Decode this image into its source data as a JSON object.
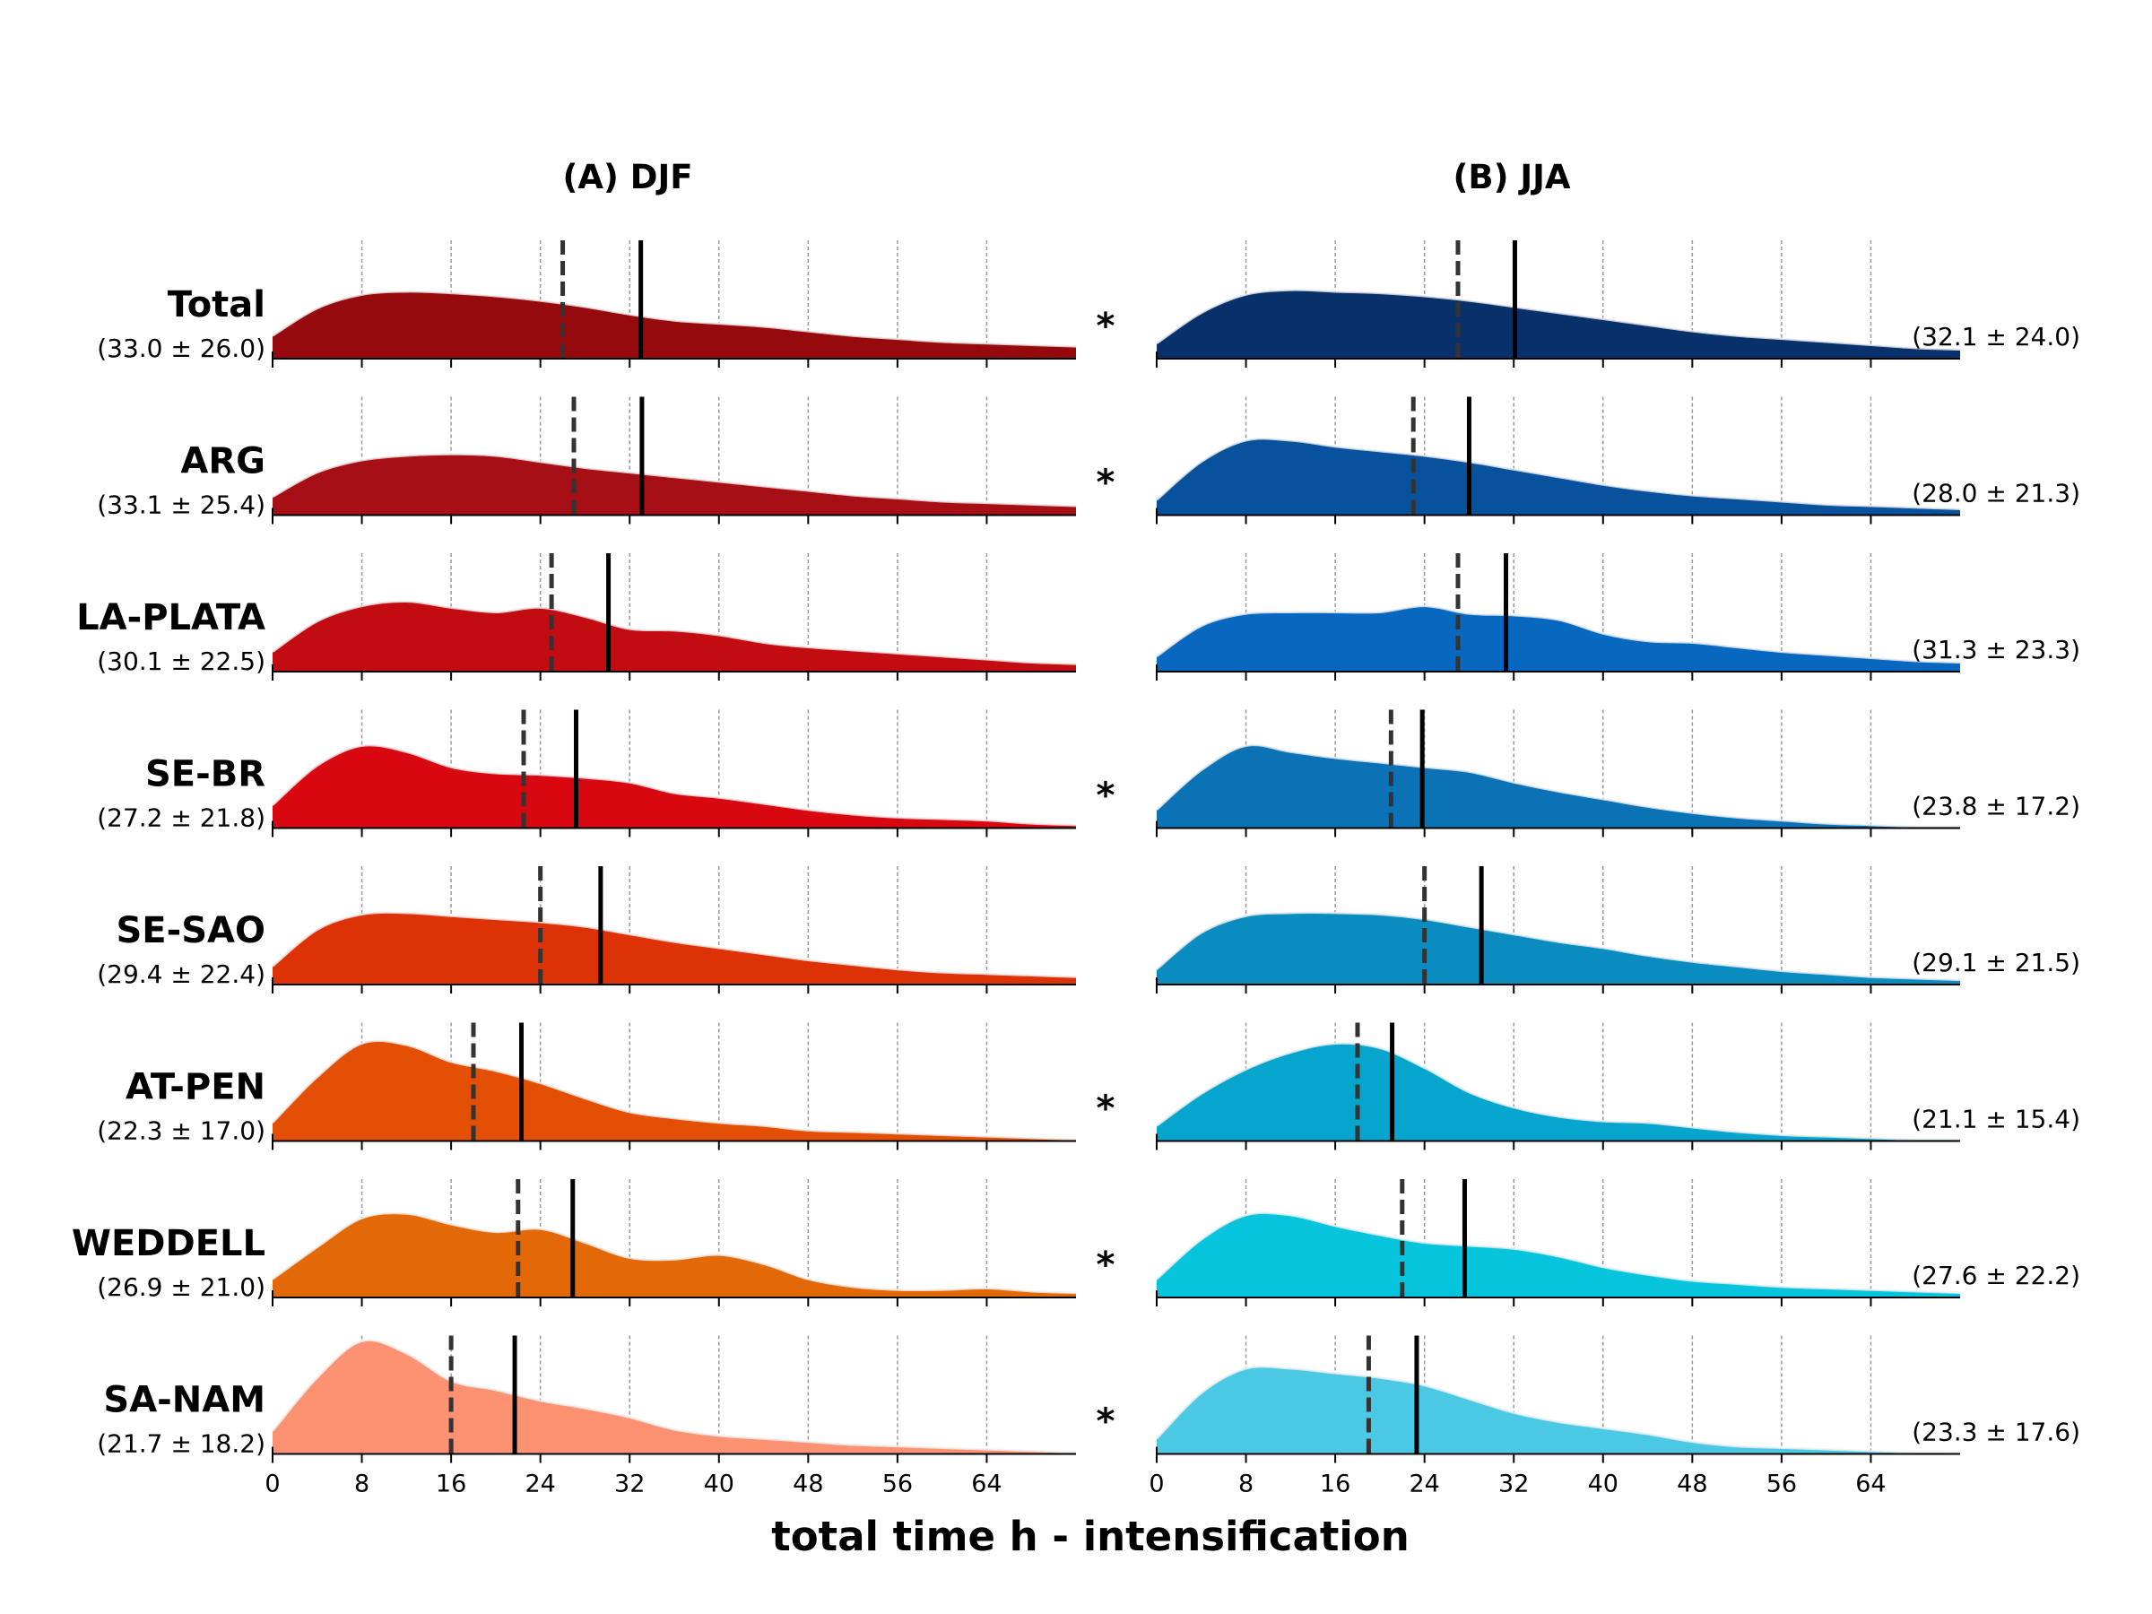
{
  "chart_data": {
    "type": "area",
    "xlabel": "total time h - intensification",
    "xlim": [
      0,
      72
    ],
    "xticks": [
      0,
      8,
      16,
      24,
      32,
      40,
      48,
      56,
      64
    ],
    "grid": "vertical dashed",
    "line_styles": {
      "dashed": "median",
      "solid": "mean"
    },
    "panels": [
      {
        "title": "(A) DJF",
        "colors": [
          "#960a0e",
          "#a50f15",
          "#c30b12",
          "#d7080f",
          "#dc3206",
          "#e24f05",
          "#e36908",
          "#fc9272"
        ],
        "series": [
          {
            "name": "Total",
            "stats": "(33.0 ± 26.0)",
            "mean": 33.0,
            "std": 26.0,
            "median": 26,
            "significant": true,
            "x": [
              0,
              4,
              8,
              12,
              16,
              20,
              24,
              28,
              32,
              36,
              40,
              44,
              48,
              52,
              56,
              60,
              64,
              68,
              72
            ],
            "density": [
              0.15,
              0.33,
              0.42,
              0.44,
              0.43,
              0.41,
              0.38,
              0.34,
              0.29,
              0.25,
              0.23,
              0.21,
              0.18,
              0.15,
              0.13,
              0.11,
              0.1,
              0.09,
              0.08
            ]
          },
          {
            "name": "ARG",
            "stats": "(33.1 ± 25.4)",
            "mean": 33.1,
            "std": 25.4,
            "median": 27,
            "significant": true,
            "x": [
              0,
              4,
              8,
              12,
              16,
              20,
              24,
              28,
              32,
              36,
              40,
              44,
              48,
              52,
              56,
              60,
              64,
              68,
              72
            ],
            "density": [
              0.12,
              0.28,
              0.36,
              0.39,
              0.4,
              0.39,
              0.35,
              0.31,
              0.28,
              0.25,
              0.22,
              0.19,
              0.16,
              0.13,
              0.11,
              0.09,
              0.08,
              0.07,
              0.06
            ]
          },
          {
            "name": "LA-PLATA",
            "stats": "(30.1 ± 22.5)",
            "mean": 30.1,
            "std": 22.5,
            "median": 25,
            "significant": false,
            "x": [
              0,
              4,
              8,
              12,
              16,
              20,
              24,
              28,
              32,
              36,
              40,
              44,
              48,
              52,
              56,
              60,
              64,
              68,
              72
            ],
            "density": [
              0.13,
              0.33,
              0.43,
              0.46,
              0.42,
              0.39,
              0.42,
              0.36,
              0.28,
              0.27,
              0.24,
              0.19,
              0.16,
              0.14,
              0.12,
              0.1,
              0.08,
              0.06,
              0.05
            ]
          },
          {
            "name": "SE-BR",
            "stats": "(27.2 ± 21.8)",
            "mean": 27.2,
            "std": 21.8,
            "median": 22.5,
            "significant": true,
            "x": [
              0,
              4,
              8,
              12,
              16,
              20,
              24,
              28,
              32,
              36,
              40,
              44,
              48,
              52,
              56,
              60,
              64,
              68,
              72
            ],
            "density": [
              0.15,
              0.41,
              0.54,
              0.5,
              0.4,
              0.36,
              0.35,
              0.33,
              0.3,
              0.23,
              0.2,
              0.16,
              0.12,
              0.09,
              0.07,
              0.06,
              0.05,
              0.03,
              0.02
            ]
          },
          {
            "name": "SE-SAO",
            "stats": "(29.4 ± 22.4)",
            "mean": 29.4,
            "std": 22.4,
            "median": 24,
            "significant": false,
            "x": [
              0,
              4,
              8,
              12,
              16,
              20,
              24,
              28,
              32,
              36,
              40,
              44,
              48,
              52,
              56,
              60,
              64,
              68,
              72
            ],
            "density": [
              0.12,
              0.36,
              0.46,
              0.47,
              0.45,
              0.43,
              0.41,
              0.38,
              0.33,
              0.28,
              0.24,
              0.2,
              0.16,
              0.13,
              0.1,
              0.08,
              0.07,
              0.06,
              0.05
            ]
          },
          {
            "name": "AT-PEN",
            "stats": "(22.3 ± 17.0)",
            "mean": 22.3,
            "std": 17.0,
            "median": 18,
            "significant": true,
            "x": [
              0,
              4,
              8,
              12,
              16,
              20,
              24,
              28,
              32,
              36,
              40,
              44,
              48,
              52,
              56,
              60,
              64,
              68,
              72
            ],
            "density": [
              0.12,
              0.42,
              0.64,
              0.63,
              0.52,
              0.46,
              0.38,
              0.28,
              0.19,
              0.15,
              0.12,
              0.1,
              0.07,
              0.06,
              0.05,
              0.04,
              0.03,
              0.02,
              0.01
            ]
          },
          {
            "name": "WEDDELL",
            "stats": "(26.9 ± 21.0)",
            "mean": 26.9,
            "std": 21.0,
            "median": 22,
            "significant": true,
            "x": [
              0,
              4,
              8,
              12,
              16,
              20,
              24,
              28,
              32,
              36,
              40,
              44,
              48,
              52,
              56,
              60,
              64,
              68,
              72
            ],
            "density": [
              0.12,
              0.33,
              0.52,
              0.55,
              0.48,
              0.43,
              0.45,
              0.36,
              0.26,
              0.25,
              0.28,
              0.22,
              0.12,
              0.07,
              0.05,
              0.05,
              0.06,
              0.04,
              0.03
            ]
          },
          {
            "name": "SA-NAM",
            "stats": "(21.7 ± 18.2)",
            "mean": 21.7,
            "std": 18.2,
            "median": 16,
            "significant": true,
            "x": [
              0,
              4,
              8,
              12,
              16,
              20,
              24,
              28,
              32,
              36,
              40,
              44,
              48,
              52,
              56,
              60,
              64,
              68,
              72
            ],
            "density": [
              0.15,
              0.5,
              0.74,
              0.66,
              0.48,
              0.42,
              0.35,
              0.3,
              0.24,
              0.16,
              0.12,
              0.1,
              0.08,
              0.06,
              0.05,
              0.04,
              0.03,
              0.02,
              0.01
            ]
          }
        ]
      },
      {
        "title": "(B) JJA",
        "colors": [
          "#08306b",
          "#08519c",
          "#0868c0",
          "#0a72b5",
          "#0a8cc0",
          "#06a5ce",
          "#06c4dc",
          "#4bc9e4"
        ],
        "series": [
          {
            "name": "Total",
            "stats": "(32.1 ± 24.0)",
            "mean": 32.1,
            "std": 24.0,
            "median": 27,
            "x": [
              0,
              4,
              8,
              12,
              16,
              20,
              24,
              28,
              32,
              36,
              40,
              44,
              48,
              52,
              56,
              60,
              64,
              68,
              72
            ],
            "density": [
              0.1,
              0.3,
              0.42,
              0.45,
              0.44,
              0.43,
              0.41,
              0.38,
              0.34,
              0.3,
              0.26,
              0.22,
              0.18,
              0.15,
              0.13,
              0.11,
              0.09,
              0.07,
              0.06
            ]
          },
          {
            "name": "ARG",
            "stats": "(28.0 ± 21.3)",
            "mean": 28.0,
            "std": 21.3,
            "median": 23,
            "x": [
              0,
              4,
              8,
              12,
              16,
              20,
              24,
              28,
              32,
              36,
              40,
              44,
              48,
              52,
              56,
              60,
              64,
              68,
              72
            ],
            "density": [
              0.1,
              0.35,
              0.49,
              0.49,
              0.45,
              0.42,
              0.39,
              0.35,
              0.3,
              0.25,
              0.2,
              0.16,
              0.13,
              0.11,
              0.09,
              0.07,
              0.06,
              0.05,
              0.04
            ]
          },
          {
            "name": "LA-PLATA",
            "stats": "(31.3 ± 23.3)",
            "mean": 31.3,
            "std": 23.3,
            "median": 27,
            "x": [
              0,
              4,
              8,
              12,
              16,
              20,
              24,
              28,
              32,
              36,
              40,
              44,
              48,
              52,
              56,
              60,
              64,
              68,
              72
            ],
            "density": [
              0.1,
              0.3,
              0.38,
              0.39,
              0.39,
              0.39,
              0.43,
              0.38,
              0.37,
              0.34,
              0.25,
              0.2,
              0.19,
              0.16,
              0.13,
              0.11,
              0.09,
              0.07,
              0.06
            ]
          },
          {
            "name": "SE-BR",
            "stats": "(23.8 ± 17.2)",
            "mean": 23.8,
            "std": 17.2,
            "median": 21,
            "x": [
              0,
              4,
              8,
              12,
              16,
              20,
              24,
              28,
              32,
              36,
              40,
              44,
              48,
              52,
              56,
              60,
              64,
              68,
              72
            ],
            "density": [
              0.12,
              0.38,
              0.54,
              0.5,
              0.46,
              0.43,
              0.4,
              0.37,
              0.3,
              0.24,
              0.19,
              0.14,
              0.1,
              0.07,
              0.05,
              0.03,
              0.02,
              0.01,
              0.01
            ]
          },
          {
            "name": "SE-SAO",
            "stats": "(29.1 ± 21.5)",
            "mean": 29.1,
            "std": 21.5,
            "median": 24,
            "x": [
              0,
              4,
              8,
              12,
              16,
              20,
              24,
              28,
              32,
              36,
              40,
              44,
              48,
              52,
              56,
              60,
              64,
              68,
              72
            ],
            "density": [
              0.1,
              0.34,
              0.45,
              0.47,
              0.47,
              0.46,
              0.43,
              0.38,
              0.33,
              0.28,
              0.24,
              0.19,
              0.15,
              0.12,
              0.09,
              0.07,
              0.05,
              0.04,
              0.03
            ]
          },
          {
            "name": "AT-PEN",
            "stats": "(21.1 ± 15.4)",
            "mean": 21.1,
            "std": 15.4,
            "median": 18,
            "x": [
              0,
              4,
              8,
              12,
              16,
              20,
              24,
              28,
              32,
              36,
              40,
              44,
              48,
              52,
              56,
              60,
              64,
              68,
              72
            ],
            "density": [
              0.1,
              0.31,
              0.47,
              0.58,
              0.64,
              0.61,
              0.48,
              0.32,
              0.22,
              0.16,
              0.13,
              0.12,
              0.09,
              0.06,
              0.04,
              0.03,
              0.02,
              0.01,
              0.01
            ]
          },
          {
            "name": "WEDDELL",
            "stats": "(27.6 ± 22.2)",
            "mean": 27.6,
            "std": 22.2,
            "median": 22,
            "x": [
              0,
              4,
              8,
              12,
              16,
              20,
              24,
              28,
              32,
              36,
              40,
              44,
              48,
              52,
              56,
              60,
              64,
              68,
              72
            ],
            "density": [
              0.12,
              0.38,
              0.54,
              0.54,
              0.47,
              0.41,
              0.36,
              0.34,
              0.32,
              0.27,
              0.2,
              0.15,
              0.11,
              0.09,
              0.07,
              0.06,
              0.05,
              0.04,
              0.03
            ]
          },
          {
            "name": "SA-NAM",
            "stats": "(23.3 ± 17.6)",
            "mean": 23.3,
            "std": 17.6,
            "median": 19,
            "x": [
              0,
              4,
              8,
              12,
              16,
              20,
              24,
              28,
              32,
              36,
              40,
              44,
              48,
              52,
              56,
              60,
              64,
              68,
              72
            ],
            "density": [
              0.1,
              0.4,
              0.56,
              0.56,
              0.53,
              0.5,
              0.45,
              0.36,
              0.27,
              0.21,
              0.17,
              0.13,
              0.08,
              0.05,
              0.04,
              0.03,
              0.02,
              0.01,
              0.01
            ]
          }
        ]
      }
    ],
    "significance_marker": "*"
  }
}
